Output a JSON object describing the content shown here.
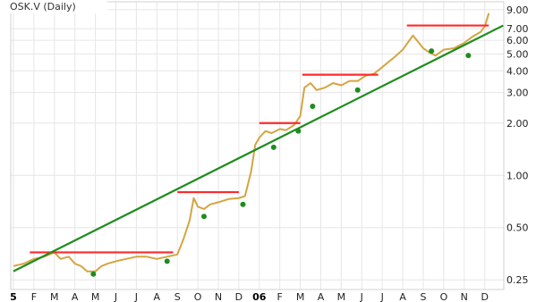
{
  "chart_data": {
    "type": "line",
    "title": "OSK.V (Daily)",
    "scale": "log",
    "ylim": [
      0.22,
      10.0
    ],
    "y_ticks": [
      "9.00",
      "7.00",
      "6.00",
      "5.00",
      "4.00",
      "3.00",
      "2.00",
      "1.00",
      "0.50",
      "0.25"
    ],
    "x_ticks": [
      "5",
      "F",
      "M",
      "A",
      "M",
      "J",
      "J",
      "A",
      "S",
      "O",
      "N",
      "D",
      "06",
      "F",
      "M",
      "A",
      "M",
      "J",
      "J",
      "A",
      "S",
      "O",
      "N",
      "D"
    ],
    "grid": true,
    "colors": {
      "price": "#d4a542",
      "resistance": "#ff2a2a",
      "trend": "#1e8c1e",
      "markers": "#1e8c1e"
    },
    "price_series": {
      "name": "",
      "points": [
        [
          0,
          0.3
        ],
        [
          0.5,
          0.31
        ],
        [
          1,
          0.33
        ],
        [
          1.5,
          0.34
        ],
        [
          2,
          0.36
        ],
        [
          2.3,
          0.33
        ],
        [
          2.7,
          0.34
        ],
        [
          3,
          0.31
        ],
        [
          3.3,
          0.3
        ],
        [
          3.6,
          0.28
        ],
        [
          4,
          0.28
        ],
        [
          4.3,
          0.3
        ],
        [
          4.6,
          0.31
        ],
        [
          5,
          0.32
        ],
        [
          5.5,
          0.33
        ],
        [
          6,
          0.34
        ],
        [
          6.5,
          0.34
        ],
        [
          7,
          0.33
        ],
        [
          7.5,
          0.34
        ],
        [
          8,
          0.35
        ],
        [
          8.3,
          0.43
        ],
        [
          8.6,
          0.55
        ],
        [
          8.8,
          0.74
        ],
        [
          9,
          0.66
        ],
        [
          9.3,
          0.64
        ],
        [
          9.6,
          0.68
        ],
        [
          10,
          0.7
        ],
        [
          10.5,
          0.73
        ],
        [
          11,
          0.74
        ],
        [
          11.3,
          0.76
        ],
        [
          11.6,
          1.05
        ],
        [
          11.8,
          1.5
        ],
        [
          12,
          1.65
        ],
        [
          12.3,
          1.8
        ],
        [
          12.6,
          1.75
        ],
        [
          13,
          1.85
        ],
        [
          13.3,
          1.82
        ],
        [
          13.7,
          1.95
        ],
        [
          14,
          2.2
        ],
        [
          14.2,
          3.2
        ],
        [
          14.5,
          3.4
        ],
        [
          14.8,
          3.1
        ],
        [
          15.2,
          3.2
        ],
        [
          15.6,
          3.4
        ],
        [
          16,
          3.3
        ],
        [
          16.4,
          3.5
        ],
        [
          16.8,
          3.5
        ],
        [
          17.2,
          3.75
        ],
        [
          17.6,
          3.85
        ],
        [
          18,
          4.2
        ],
        [
          18.3,
          4.5
        ],
        [
          18.6,
          4.8
        ],
        [
          19,
          5.3
        ],
        [
          19.5,
          6.4
        ],
        [
          20,
          5.4
        ],
        [
          20.3,
          5.1
        ],
        [
          20.6,
          4.9
        ],
        [
          21,
          5.3
        ],
        [
          21.5,
          5.4
        ],
        [
          22,
          5.8
        ],
        [
          22.4,
          6.3
        ],
        [
          22.8,
          6.7
        ],
        [
          23,
          7.2
        ],
        [
          23.2,
          8.6
        ]
      ]
    },
    "resistance_lines": [
      {
        "x": [
          0.8,
          7.8
        ],
        "y": 0.36
      },
      {
        "x": [
          8,
          11
        ],
        "y": 0.8
      },
      {
        "x": [
          12,
          14
        ],
        "y": 2.0
      },
      {
        "x": [
          14.1,
          17.8
        ],
        "y": 3.8
      },
      {
        "x": [
          19.2,
          23.2
        ],
        "y": 7.3
      }
    ],
    "trend_line": {
      "x": [
        0,
        23.9
      ],
      "y": [
        0.28,
        7.3
      ]
    },
    "markers": [
      {
        "x": 3.9,
        "y": 0.27
      },
      {
        "x": 7.5,
        "y": 0.32
      },
      {
        "x": 9.3,
        "y": 0.58
      },
      {
        "x": 11.2,
        "y": 0.68
      },
      {
        "x": 12.7,
        "y": 1.45
      },
      {
        "x": 13.9,
        "y": 1.8
      },
      {
        "x": 14.6,
        "y": 2.5
      },
      {
        "x": 16.8,
        "y": 3.1
      },
      {
        "x": 20.4,
        "y": 5.2
      },
      {
        "x": 22.2,
        "y": 4.9
      }
    ]
  }
}
